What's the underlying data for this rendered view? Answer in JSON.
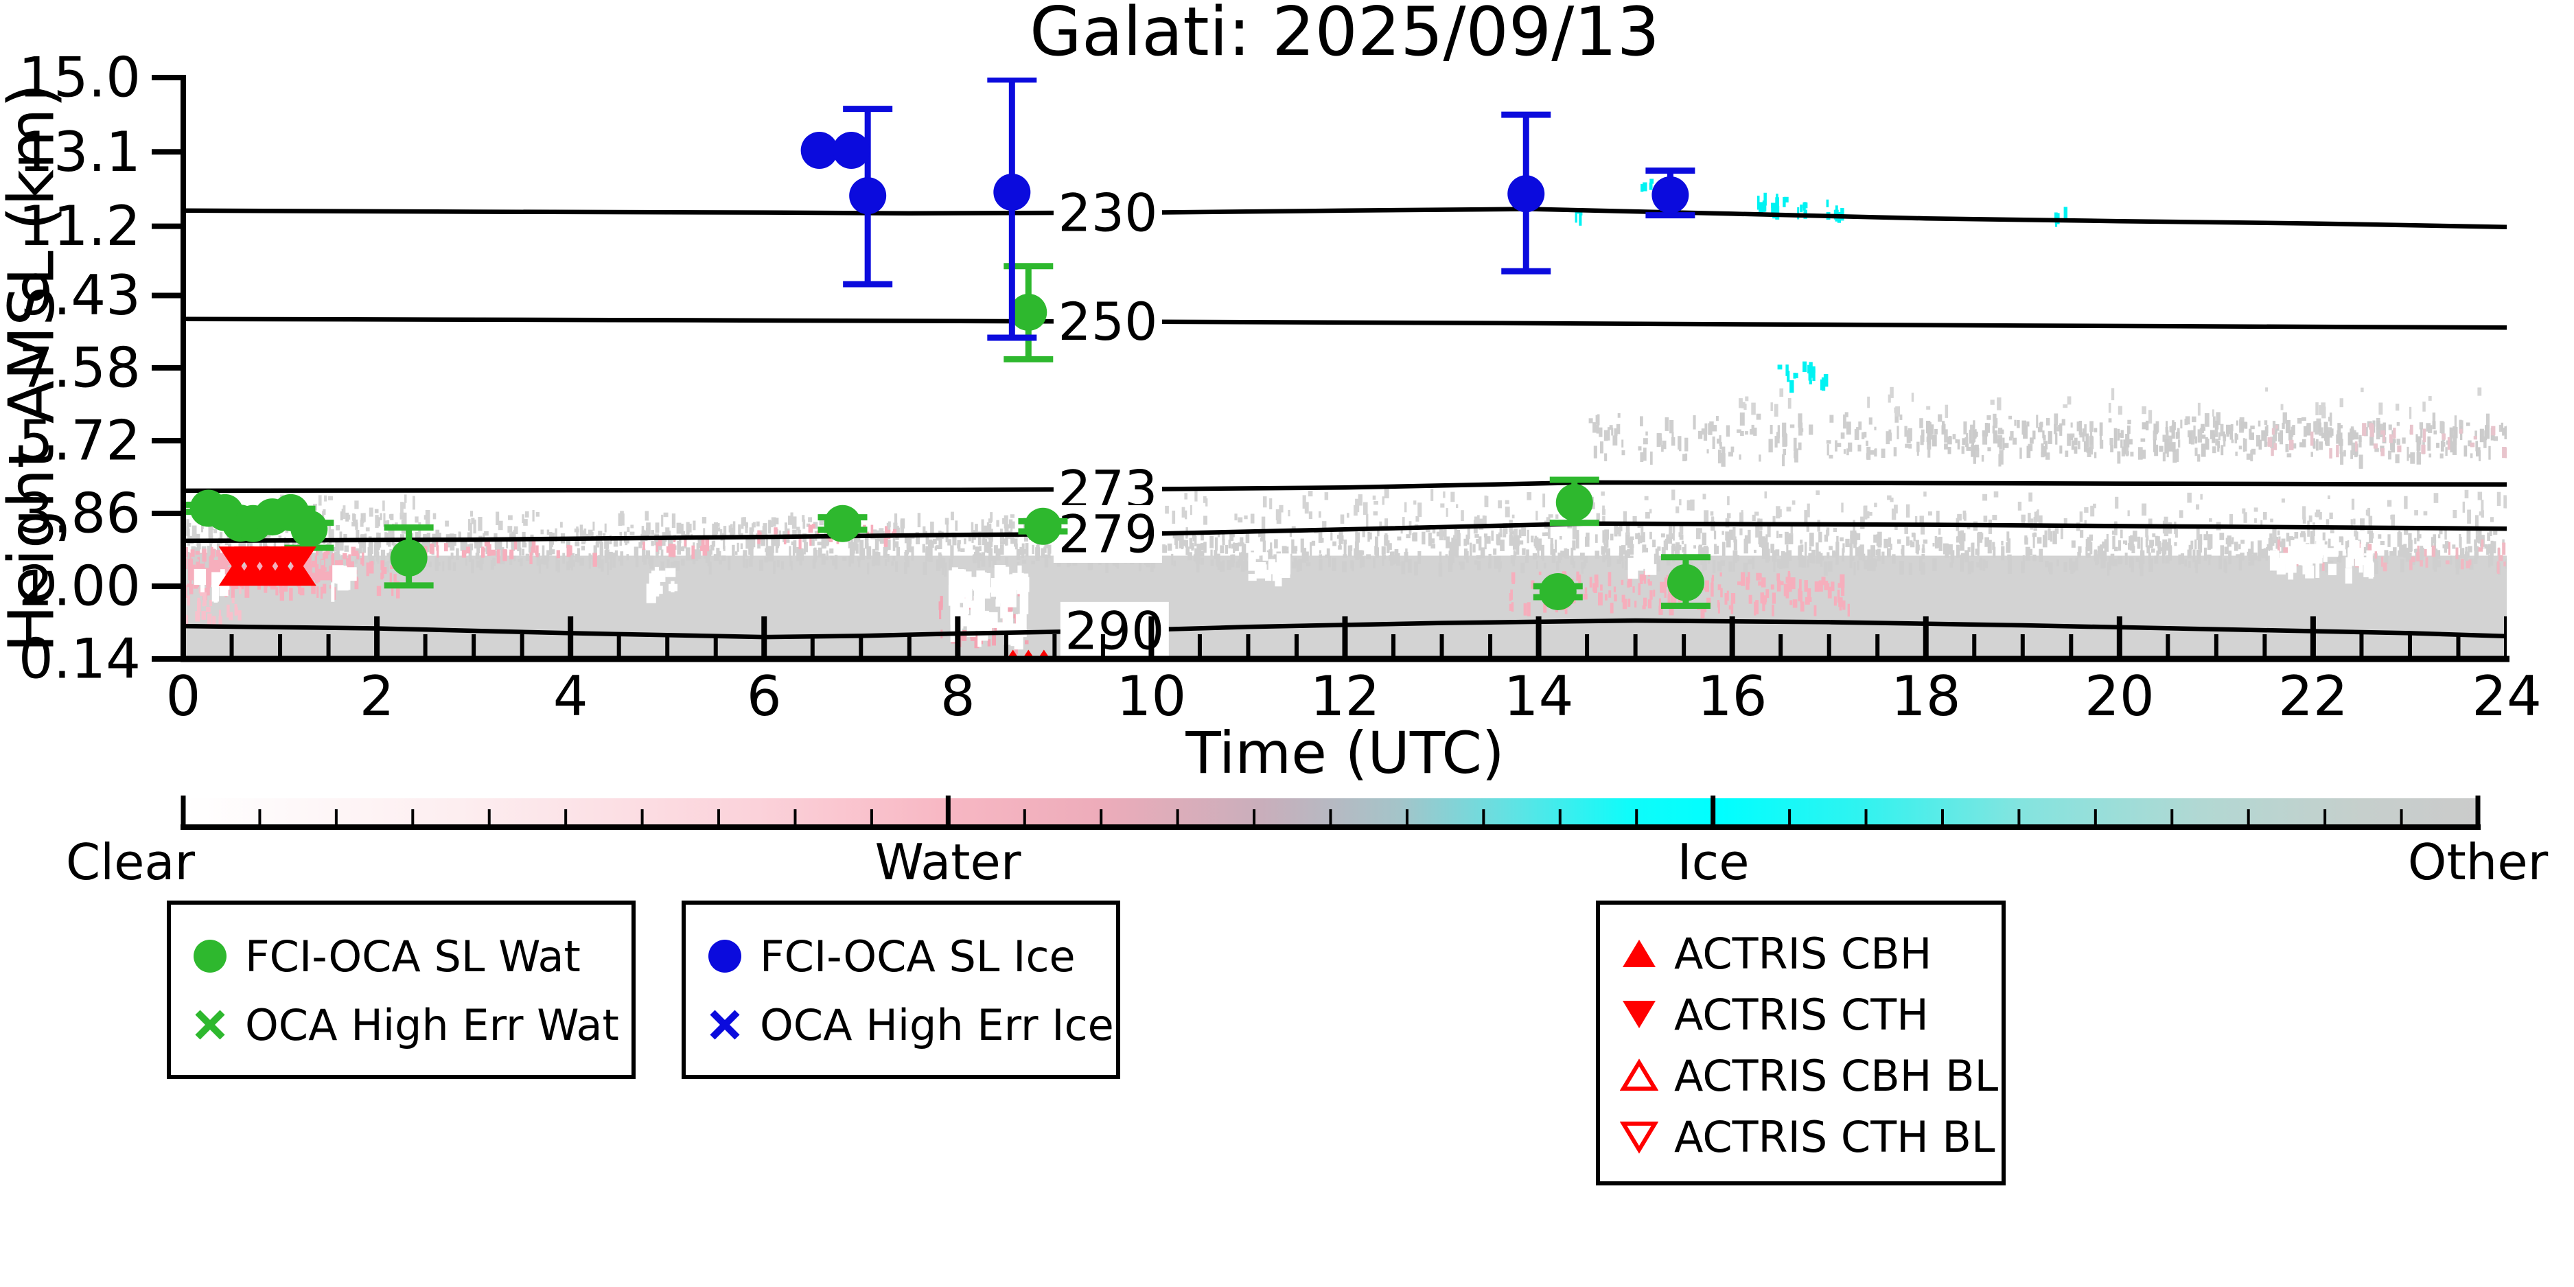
{
  "chart_data": {
    "type": "scatter",
    "title": "Galati: 2025/09/13",
    "xlabel": "Time (UTC)",
    "ylabel": "Height AMSL (km)",
    "x_ticks": [
      "0",
      "2",
      "4",
      "6",
      "8",
      "10",
      "12",
      "14",
      "16",
      "18",
      "20",
      "22",
      "24"
    ],
    "y_ticks": [
      "15.0",
      "13.1",
      "11.2",
      "9.43",
      "7.58",
      "5.72",
      "3.86",
      "2.00",
      "0.14"
    ],
    "xlim": [
      0,
      24
    ],
    "ylim": [
      0.14,
      15.0
    ],
    "grid": false,
    "legend_position": "below",
    "colors": {
      "water_points": "#2eb82e",
      "ice_points": "#0b0bdd",
      "actris": "#ff0000",
      "class_clear": "#ffffff",
      "class_water": "#f6aebc",
      "class_ice": "#00ffff",
      "class_other": "#cccccc",
      "cloud_gray": "#d3d3d3"
    },
    "contours": [
      {
        "label": "230",
        "label_t": 9.55,
        "pts": [
          [
            0,
            11.6
          ],
          [
            3,
            11.57
          ],
          [
            6,
            11.55
          ],
          [
            7.5,
            11.53
          ],
          [
            10,
            11.55
          ],
          [
            12,
            11.6
          ],
          [
            13.9,
            11.64
          ],
          [
            16,
            11.52
          ],
          [
            18,
            11.4
          ],
          [
            20,
            11.33
          ],
          [
            22,
            11.27
          ],
          [
            24,
            11.18
          ]
        ]
      },
      {
        "label": "250",
        "label_t": 9.55,
        "pts": [
          [
            0,
            8.83
          ],
          [
            5,
            8.8
          ],
          [
            10,
            8.76
          ],
          [
            14,
            8.72
          ],
          [
            19,
            8.66
          ],
          [
            24,
            8.61
          ]
        ]
      },
      {
        "label": "273",
        "label_t": 9.55,
        "pts": [
          [
            0,
            4.44
          ],
          [
            4,
            4.45
          ],
          [
            8,
            4.46
          ],
          [
            10,
            4.48
          ],
          [
            12,
            4.52
          ],
          [
            14.5,
            4.65
          ],
          [
            17,
            4.64
          ],
          [
            20,
            4.62
          ],
          [
            24,
            4.6
          ]
        ]
      },
      {
        "label": "279",
        "label_t": 9.55,
        "pts": [
          [
            0,
            3.16
          ],
          [
            3,
            3.19
          ],
          [
            6,
            3.26
          ],
          [
            8,
            3.31
          ],
          [
            10,
            3.34
          ],
          [
            12,
            3.45
          ],
          [
            14.5,
            3.6
          ],
          [
            18,
            3.57
          ],
          [
            21,
            3.52
          ],
          [
            24,
            3.47
          ]
        ]
      },
      {
        "label": "290",
        "label_t": 9.62,
        "pts": [
          [
            0,
            0.98
          ],
          [
            2,
            0.92
          ],
          [
            4,
            0.8
          ],
          [
            6,
            0.7
          ],
          [
            7,
            0.73
          ],
          [
            8,
            0.79
          ],
          [
            9.6,
            0.86
          ],
          [
            11,
            0.96
          ],
          [
            13,
            1.06
          ],
          [
            15,
            1.12
          ],
          [
            17,
            1.08
          ],
          [
            19,
            1.0
          ],
          [
            21,
            0.9
          ],
          [
            23,
            0.8
          ],
          [
            24,
            0.72
          ]
        ]
      }
    ],
    "series": [
      {
        "name": "FCI-OCA SL Wat",
        "marker": "circle",
        "color": "#2eb82e",
        "size": 27,
        "points": [
          {
            "t": 0.26,
            "h": 3.99,
            "lo": 3.9,
            "hi": 4.08
          },
          {
            "t": 0.43,
            "h": 3.88
          },
          {
            "t": 0.59,
            "h": 3.61
          },
          {
            "t": 0.72,
            "h": 3.6
          },
          {
            "t": 0.92,
            "h": 3.77
          },
          {
            "t": 1.11,
            "h": 3.88,
            "lo": 3.63,
            "hi": 3.98
          },
          {
            "t": 1.3,
            "h": 3.47,
            "lo": 2.98,
            "hi": 3.62
          },
          {
            "t": 2.33,
            "h": 2.72,
            "lo": 2.02,
            "hi": 3.5
          },
          {
            "t": 6.81,
            "h": 3.6,
            "lo": 3.44,
            "hi": 3.76
          },
          {
            "t": 8.73,
            "h": 9.0,
            "lo": 7.8,
            "hi": 10.18
          },
          {
            "t": 8.88,
            "h": 3.53,
            "lo": 3.4,
            "hi": 3.66
          },
          {
            "t": 14.2,
            "h": 1.86,
            "lo": 1.72,
            "hi": 2.0
          },
          {
            "t": 14.37,
            "h": 4.14,
            "lo": 3.62,
            "hi": 4.72
          },
          {
            "t": 15.52,
            "h": 2.09,
            "lo": 1.5,
            "hi": 2.74
          }
        ]
      },
      {
        "name": "FCI-OCA SL Ice",
        "marker": "circle",
        "color": "#0b0bdd",
        "size": 27,
        "points": [
          {
            "t": 6.57,
            "h": 13.14
          },
          {
            "t": 6.9,
            "h": 13.14
          },
          {
            "t": 7.07,
            "h": 11.98,
            "lo": 9.72,
            "hi": 14.2
          },
          {
            "t": 8.56,
            "h": 12.07,
            "lo": 8.35,
            "hi": 14.95
          },
          {
            "t": 13.87,
            "h": 12.03,
            "lo": 10.05,
            "hi": 14.05
          },
          {
            "t": 15.36,
            "h": 12.0,
            "lo": 11.48,
            "hi": 12.62
          }
        ]
      },
      {
        "name": "ACTRIS CTH",
        "marker": "triangle-down",
        "color": "#ff0000",
        "size": 26,
        "points": [
          {
            "t": 0.55,
            "h": 2.67
          },
          {
            "t": 0.71,
            "h": 2.67
          },
          {
            "t": 0.87,
            "h": 2.67
          },
          {
            "t": 1.03,
            "h": 2.67
          },
          {
            "t": 1.19,
            "h": 2.67
          }
        ]
      },
      {
        "name": "ACTRIS CBH",
        "marker": "triangle-up",
        "color": "#ff0000",
        "size": 26,
        "points": [
          {
            "t": 0.55,
            "h": 2.35
          },
          {
            "t": 0.71,
            "h": 2.35
          },
          {
            "t": 0.87,
            "h": 2.35
          },
          {
            "t": 1.03,
            "h": 2.35
          },
          {
            "t": 1.19,
            "h": 2.35
          },
          {
            "t": 8.57,
            "h": 0.22,
            "size": 12
          },
          {
            "t": 8.73,
            "h": 0.22,
            "size": 12
          },
          {
            "t": 8.89,
            "h": 0.22,
            "size": 12
          }
        ]
      }
    ],
    "background": {
      "solids": [
        {
          "t": [
            0,
            24
          ],
          "h": [
            0.17,
            2.78
          ],
          "color": "#d3d3d3"
        },
        {
          "t": [
            0.05,
            1.6
          ],
          "h": [
            2.15,
            2.85
          ],
          "color": "#f6aebc"
        }
      ],
      "speckle": [
        {
          "t": [
            0,
            24
          ],
          "h": [
            2.6,
            3.45
          ],
          "color": "#cfcfcf",
          "density": 0.55
        },
        {
          "t": [
            0,
            24
          ],
          "h": [
            3.45,
            3.95
          ],
          "color": "#d2d2d2",
          "density": 0.18
        },
        {
          "t": [
            0,
            2.2
          ],
          "h": [
            3.5,
            4.0
          ],
          "color": "#cfcfcf",
          "density": 0.45
        },
        {
          "t": [
            0,
            2.5
          ],
          "h": [
            4.0,
            4.35
          ],
          "color": "#d4d4d4",
          "density": 0.15
        },
        {
          "t": [
            10,
            24
          ],
          "h": [
            3.9,
            4.5
          ],
          "color": "#d4d4d4",
          "density": 0.1
        },
        {
          "t": [
            4,
            9.6
          ],
          "h": [
            3.3,
            3.75
          ],
          "color": "#d0d0d0",
          "density": 0.3
        },
        {
          "t": [
            14.5,
            24
          ],
          "h": [
            5.35,
            6.45
          ],
          "color": "#cecece",
          "density": 0.22
        },
        {
          "t": [
            18,
            24
          ],
          "h": [
            5.55,
            6.25
          ],
          "color": "#cbcbcb",
          "density": 0.35
        },
        {
          "t": [
            16,
            24
          ],
          "h": [
            6.5,
            7.1
          ],
          "color": "#d6d6d6",
          "density": 0.06
        },
        {
          "t": [
            0,
            2.2
          ],
          "h": [
            1.95,
            3.05
          ],
          "color": "#f6aebc",
          "density": 0.45
        },
        {
          "t": [
            0,
            0.6
          ],
          "h": [
            1.15,
            2.0
          ],
          "color": "#f8c0cb",
          "density": 0.35
        },
        {
          "t": [
            2.4,
            4.3
          ],
          "h": [
            2.85,
            3.2
          ],
          "color": "#f6aebc",
          "density": 0.3
        },
        {
          "t": [
            4.6,
            5.7
          ],
          "h": [
            3.0,
            3.25
          ],
          "color": "#f6aebc",
          "density": 0.35
        },
        {
          "t": [
            5.9,
            7.4
          ],
          "h": [
            3.25,
            3.6
          ],
          "color": "#f6aebc",
          "density": 0.4
        },
        {
          "t": [
            7.8,
            8.7
          ],
          "h": [
            0.6,
            1.9
          ],
          "color": "#f3a3b2",
          "density": 0.3
        },
        {
          "t": [
            13.6,
            17.2
          ],
          "h": [
            1.5,
            2.4
          ],
          "color": "#f6aebc",
          "density": 0.35
        },
        {
          "t": [
            21.6,
            24
          ],
          "h": [
            2.6,
            3.2
          ],
          "color": "#f0b8c2",
          "density": 0.2
        },
        {
          "t": [
            21.5,
            24
          ],
          "h": [
            5.5,
            6.2
          ],
          "color": "#e8c4cc",
          "density": 0.12
        },
        {
          "t": [
            16.25,
            16.6
          ],
          "h": [
            11.7,
            12.15
          ],
          "color": "#00f2f2",
          "density": 0.55
        },
        {
          "t": [
            16.6,
            16.8
          ],
          "h": [
            11.5,
            11.85
          ],
          "color": "#00f2f2",
          "density": 0.55
        },
        {
          "t": [
            16.95,
            17.15
          ],
          "h": [
            11.45,
            11.9
          ],
          "color": "#00f2f2",
          "density": 0.5
        },
        {
          "t": [
            19.3,
            19.45
          ],
          "h": [
            11.45,
            11.75
          ],
          "color": "#00f2f2",
          "density": 0.55
        },
        {
          "t": [
            16.45,
            16.95
          ],
          "h": [
            7.25,
            7.75
          ],
          "color": "#00f2f2",
          "density": 0.5
        },
        {
          "t": [
            14.35,
            14.45
          ],
          "h": [
            11.5,
            11.7
          ],
          "color": "#00f2f2",
          "density": 0.55
        },
        {
          "t": [
            15.05,
            15.15
          ],
          "h": [
            12.25,
            12.45
          ],
          "color": "#00f2f2",
          "density": 0.45
        }
      ],
      "white_gaps": [
        {
          "t": [
            7.9,
            8.65
          ],
          "h": [
            0.95,
            2.6
          ],
          "density": 0.55
        },
        {
          "t": [
            21.5,
            22.6
          ],
          "h": [
            2.45,
            3.2
          ],
          "density": 0.4
        },
        {
          "t": [
            1.5,
            1.75
          ],
          "h": [
            2.0,
            2.6
          ],
          "density": 0.5
        },
        {
          "t": [
            4.75,
            5.05
          ],
          "h": [
            2.0,
            2.5
          ],
          "density": 0.5
        },
        {
          "t": [
            11.0,
            11.35
          ],
          "h": [
            2.3,
            2.95
          ],
          "density": 0.45
        },
        {
          "t": [
            0.1,
            0.5
          ],
          "h": [
            2.0,
            2.45
          ],
          "density": 0.4
        },
        {
          "t": [
            14.8,
            15.1
          ],
          "h": [
            2.45,
            2.9
          ],
          "density": 0.4
        }
      ]
    },
    "colorbar": {
      "labels": [
        "Clear",
        "Water",
        "Ice",
        "Other"
      ],
      "gradient": [
        [
          "0%",
          "#ffffff"
        ],
        [
          "12%",
          "#fdeef0"
        ],
        [
          "25%",
          "#fbd2da"
        ],
        [
          "33%",
          "#f8b8c4"
        ],
        [
          "40%",
          "#edacba"
        ],
        [
          "47%",
          "#c9aebb"
        ],
        [
          "53%",
          "#a4c4c9"
        ],
        [
          "58%",
          "#5fe3e4"
        ],
        [
          "63%",
          "#0ffcfa"
        ],
        [
          "67%",
          "#00ffff"
        ],
        [
          "73%",
          "#2ff3f0"
        ],
        [
          "80%",
          "#83e4df"
        ],
        [
          "88%",
          "#b2d8d3"
        ],
        [
          "95%",
          "#c6cfcc"
        ],
        [
          "100%",
          "#cbcbcb"
        ]
      ]
    },
    "legend": {
      "box1": [
        {
          "label": "FCI-OCA SL Wat",
          "marker": "circle",
          "color": "#2eb82e"
        },
        {
          "label": "OCA High Err Wat",
          "marker": "x",
          "color": "#2eb82e"
        }
      ],
      "box2": [
        {
          "label": "FCI-OCA SL Ice",
          "marker": "circle",
          "color": "#0b0bdd"
        },
        {
          "label": "OCA High Err Ice",
          "marker": "x",
          "color": "#0b0bdd"
        }
      ],
      "box3": [
        {
          "label": "ACTRIS CBH",
          "marker": "triangle-up",
          "filled": true,
          "color": "#ff0000"
        },
        {
          "label": "ACTRIS CTH",
          "marker": "triangle-down",
          "filled": true,
          "color": "#ff0000"
        },
        {
          "label": "ACTRIS CBH BL",
          "marker": "triangle-up",
          "filled": false,
          "color": "#ff0000"
        },
        {
          "label": "ACTRIS CTH BL",
          "marker": "triangle-down",
          "filled": false,
          "color": "#ff0000"
        }
      ]
    }
  }
}
